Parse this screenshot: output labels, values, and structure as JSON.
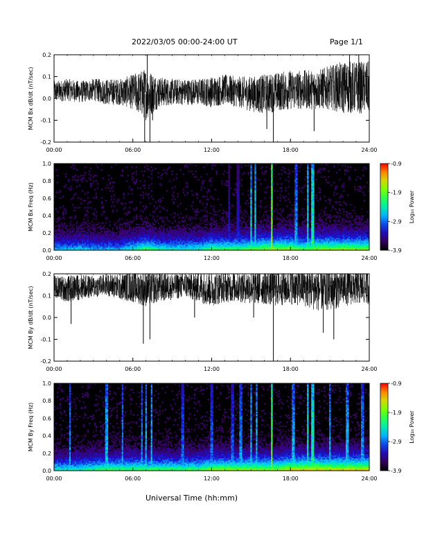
{
  "header": {
    "title": "2022/03/05  00:00-24:00 UT",
    "page": "Page 1/1"
  },
  "footer": {
    "xlabel": "Universal Time (hh:mm)"
  },
  "colors": {
    "background": "#ffffff",
    "trace": "#000000",
    "axis": "#000000"
  },
  "chart_data": [
    {
      "id": "bx-dbdt",
      "type": "line",
      "ylabel": "MCM Bx dB/dt (nT/sec)",
      "xlim": [
        "00:00",
        "24:00"
      ],
      "ylim": [
        -0.2,
        0.2
      ],
      "x_ticks": [
        "00:00",
        "06:00",
        "12:00",
        "18:00",
        "24:00"
      ],
      "y_ticks": [
        "-0.2",
        "-0.1",
        "0.0",
        "0.1",
        "0.2"
      ],
      "x": [
        0,
        1,
        2,
        3,
        4,
        5,
        6,
        7,
        8,
        9,
        10,
        11,
        12,
        13,
        14,
        15,
        16,
        17,
        18,
        19,
        20,
        21,
        22,
        23,
        24
      ],
      "series": [
        {
          "values": [
            0.03,
            0.04,
            0.03,
            0.04,
            0.03,
            0.03,
            0.03,
            0.02,
            0.03,
            0.03,
            0.03,
            0.03,
            0.03,
            0.04,
            0.03,
            0.02,
            0.02,
            0.03,
            0.04,
            0.04,
            0.04,
            0.05,
            0.05,
            0.05,
            0.05
          ]
        }
      ],
      "envelope": [
        0.05,
        0.05,
        0.05,
        0.05,
        0.06,
        0.06,
        0.08,
        0.12,
        0.07,
        0.06,
        0.06,
        0.06,
        0.07,
        0.07,
        0.07,
        0.08,
        0.09,
        0.09,
        0.09,
        0.09,
        0.09,
        0.1,
        0.12,
        0.12,
        0.12
      ],
      "spikes": [
        {
          "x": 6.9,
          "y": -0.2
        },
        {
          "x": 7.3,
          "y": -0.2
        },
        {
          "x": 16.7,
          "y": -0.2
        },
        {
          "x": 16.2,
          "y": -0.14
        },
        {
          "x": 7.1,
          "y": 0.2
        },
        {
          "x": 19.8,
          "y": -0.15
        },
        {
          "x": 22.5,
          "y": 0.2
        },
        {
          "x": 23.2,
          "y": 0.2
        },
        {
          "x": 7.5,
          "y": -0.1
        }
      ]
    },
    {
      "id": "bx-spec",
      "type": "heatmap",
      "ylabel": "MCM Bx Freq (Hz)",
      "xlim": [
        "00:00",
        "24:00"
      ],
      "ylim": [
        0,
        1.0
      ],
      "x_ticks": [
        "00:00",
        "06:00",
        "12:00",
        "18:00",
        "24:00"
      ],
      "y_ticks": [
        "0.0",
        "0.2",
        "0.4",
        "0.6",
        "0.8",
        "1.0"
      ],
      "colorbar": {
        "label": "Log₁₀ Power",
        "range": [
          -3.9,
          -0.9
        ],
        "ticks": [
          "-0.9",
          "-1.9",
          "-2.9",
          "-3.9"
        ]
      },
      "base_level": [
        0.2,
        0.2,
        0.22,
        0.2,
        0.2,
        0.2,
        0.25,
        0.3,
        0.25,
        0.25,
        0.25,
        0.25,
        0.3,
        0.3,
        0.3,
        0.32,
        0.35,
        0.35,
        0.35,
        0.3,
        0.35,
        0.35,
        0.35,
        0.35,
        0.35
      ],
      "bursts": [
        {
          "x": 15.0,
          "intensity": 0.55
        },
        {
          "x": 15.3,
          "intensity": 0.55
        },
        {
          "x": 16.6,
          "intensity": 0.8
        },
        {
          "x": 18.4,
          "intensity": 0.45
        },
        {
          "x": 19.3,
          "intensity": 0.55
        },
        {
          "x": 19.7,
          "intensity": 0.6
        },
        {
          "x": 13.3,
          "intensity": 0.3
        },
        {
          "x": 14.0,
          "intensity": 0.3
        }
      ]
    },
    {
      "id": "by-dbdt",
      "type": "line",
      "ylabel": "MCM By dB/dt (nT/sec)",
      "xlim": [
        "00:00",
        "24:00"
      ],
      "ylim": [
        -0.2,
        0.2
      ],
      "x_ticks": [
        "00:00",
        "06:00",
        "12:00",
        "18:00",
        "24:00"
      ],
      "y_ticks": [
        "-0.2",
        "-0.1",
        "0.0",
        "0.1",
        "0.2"
      ],
      "x": [
        0,
        1,
        2,
        3,
        4,
        5,
        6,
        7,
        8,
        9,
        10,
        11,
        12,
        13,
        14,
        15,
        16,
        17,
        18,
        19,
        20,
        21,
        22,
        23,
        24
      ],
      "series": [
        {
          "values": [
            0.14,
            0.13,
            0.14,
            0.14,
            0.15,
            0.14,
            0.14,
            0.13,
            0.14,
            0.14,
            0.15,
            0.14,
            0.13,
            0.14,
            0.14,
            0.14,
            0.14,
            0.14,
            0.14,
            0.14,
            0.13,
            0.13,
            0.14,
            0.14,
            0.14
          ]
        }
      ],
      "envelope": [
        0.05,
        0.06,
        0.06,
        0.05,
        0.05,
        0.06,
        0.07,
        0.08,
        0.07,
        0.06,
        0.06,
        0.07,
        0.08,
        0.07,
        0.07,
        0.08,
        0.08,
        0.09,
        0.08,
        0.09,
        0.1,
        0.1,
        0.09,
        0.08,
        0.08
      ],
      "spikes": [
        {
          "x": 1.3,
          "y": -0.03
        },
        {
          "x": 6.8,
          "y": -0.12
        },
        {
          "x": 7.3,
          "y": -0.1
        },
        {
          "x": 16.7,
          "y": -0.2
        },
        {
          "x": 21.3,
          "y": -0.1
        },
        {
          "x": 20.5,
          "y": -0.07
        },
        {
          "x": 10.7,
          "y": 0.0
        },
        {
          "x": 15.2,
          "y": 0.0
        }
      ]
    },
    {
      "id": "by-spec",
      "type": "heatmap",
      "ylabel": "MCM By Freq (Hz)",
      "xlim": [
        "00:00",
        "24:00"
      ],
      "ylim": [
        0,
        1.0
      ],
      "x_ticks": [
        "00:00",
        "06:00",
        "12:00",
        "18:00",
        "24:00"
      ],
      "y_ticks": [
        "0.0",
        "0.2",
        "0.4",
        "0.6",
        "0.8",
        "1.0"
      ],
      "colorbar": {
        "label": "Log₁₀ Power",
        "range": [
          -3.9,
          -0.9
        ],
        "ticks": [
          "-0.9",
          "-1.9",
          "-2.9",
          "-3.9"
        ]
      },
      "base_level": [
        0.25,
        0.25,
        0.25,
        0.28,
        0.3,
        0.3,
        0.3,
        0.3,
        0.3,
        0.3,
        0.3,
        0.3,
        0.35,
        0.35,
        0.35,
        0.35,
        0.35,
        0.35,
        0.4,
        0.4,
        0.4,
        0.4,
        0.4,
        0.4,
        0.4
      ],
      "bursts": [
        {
          "x": 1.2,
          "intensity": 0.45
        },
        {
          "x": 4.0,
          "intensity": 0.5
        },
        {
          "x": 5.2,
          "intensity": 0.45
        },
        {
          "x": 6.7,
          "intensity": 0.45
        },
        {
          "x": 7.0,
          "intensity": 0.5
        },
        {
          "x": 7.4,
          "intensity": 0.5
        },
        {
          "x": 9.8,
          "intensity": 0.4
        },
        {
          "x": 12.0,
          "intensity": 0.4
        },
        {
          "x": 13.6,
          "intensity": 0.4
        },
        {
          "x": 14.2,
          "intensity": 0.45
        },
        {
          "x": 15.0,
          "intensity": 0.5
        },
        {
          "x": 15.4,
          "intensity": 0.5
        },
        {
          "x": 16.6,
          "intensity": 0.75
        },
        {
          "x": 18.2,
          "intensity": 0.5
        },
        {
          "x": 19.3,
          "intensity": 0.6
        },
        {
          "x": 19.7,
          "intensity": 0.6
        },
        {
          "x": 21.0,
          "intensity": 0.5
        },
        {
          "x": 22.3,
          "intensity": 0.5
        },
        {
          "x": 23.5,
          "intensity": 0.45
        }
      ]
    }
  ]
}
